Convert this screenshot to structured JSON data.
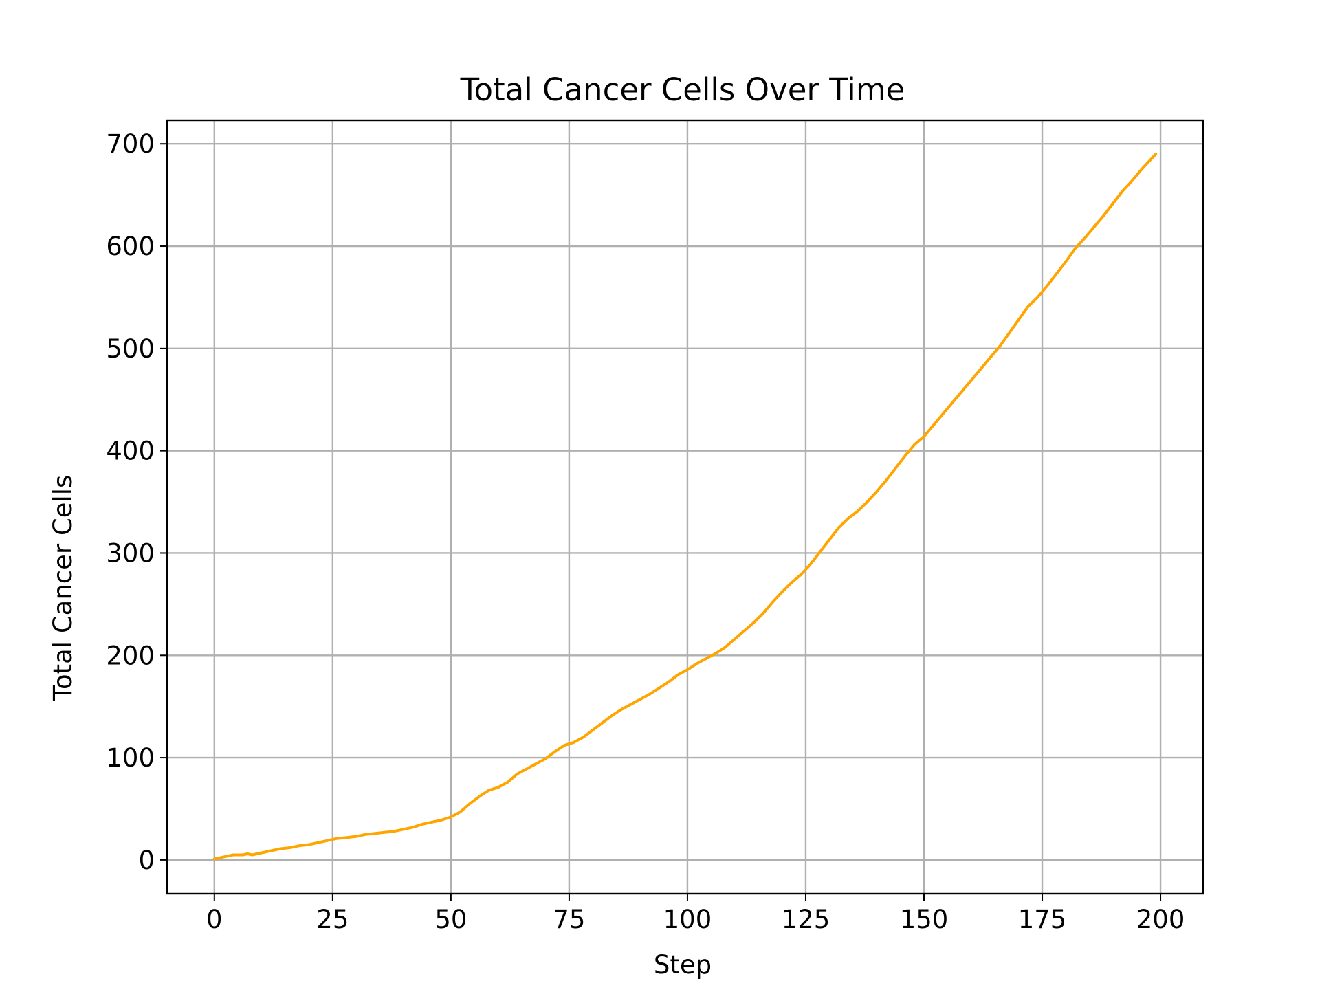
{
  "chart_data": {
    "type": "line",
    "title": "Total Cancer Cells Over Time",
    "xlabel": "Step",
    "ylabel": "Total Cancer Cells",
    "xlim": [
      -10,
      209
    ],
    "ylim": [
      -33,
      723
    ],
    "xticks": [
      0,
      25,
      50,
      75,
      100,
      125,
      150,
      175,
      200
    ],
    "yticks": [
      0,
      100,
      200,
      300,
      400,
      500,
      600,
      700
    ],
    "grid": true,
    "series": [
      {
        "color": "#ffa500",
        "x": [
          0,
          2,
          4,
          6,
          7,
          8,
          10,
          12,
          14,
          16,
          18,
          20,
          22,
          24,
          26,
          28,
          30,
          32,
          34,
          36,
          38,
          40,
          42,
          44,
          46,
          48,
          50,
          52,
          54,
          56,
          58,
          60,
          62,
          64,
          66,
          68,
          70,
          72,
          74,
          76,
          78,
          80,
          82,
          84,
          86,
          88,
          90,
          92,
          94,
          96,
          98,
          100,
          102,
          104,
          106,
          108,
          110,
          112,
          114,
          116,
          118,
          120,
          122,
          124,
          126,
          128,
          130,
          132,
          134,
          136,
          138,
          140,
          142,
          144,
          146,
          148,
          150,
          152,
          154,
          156,
          158,
          160,
          162,
          164,
          166,
          168,
          170,
          172,
          174,
          176,
          178,
          180,
          182,
          184,
          186,
          188,
          190,
          192,
          194,
          196,
          198,
          199
        ],
        "y": [
          1,
          3,
          5,
          5,
          6,
          5,
          7,
          9,
          11,
          12,
          14,
          15,
          17,
          19,
          21,
          22,
          23,
          25,
          26,
          27,
          28,
          30,
          32,
          35,
          37,
          39,
          42,
          47,
          55,
          62,
          68,
          71,
          76,
          84,
          89,
          94,
          99,
          106,
          112,
          115,
          120,
          127,
          134,
          141,
          147,
          152,
          157,
          162,
          168,
          174,
          181,
          186,
          192,
          197,
          202,
          208,
          216,
          224,
          232,
          241,
          252,
          262,
          271,
          279,
          289,
          301,
          313,
          325,
          334,
          341,
          350,
          360,
          371,
          383,
          395,
          406,
          414,
          425,
          436,
          447,
          458,
          469,
          480,
          491,
          502,
          515,
          528,
          541,
          550,
          561,
          573,
          585,
          598,
          608,
          619,
          630,
          642,
          654,
          664,
          675,
          685,
          690
        ]
      }
    ]
  }
}
